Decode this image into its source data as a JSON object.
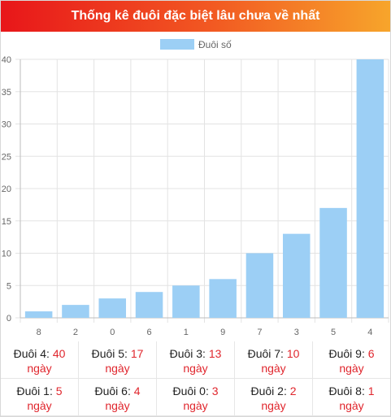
{
  "header": {
    "title": "Thống kê đuôi đặc biệt lâu chưa về nhất"
  },
  "colors": {
    "bar": "#9ccff5",
    "value_red": "#e0262d"
  },
  "chart_data": {
    "type": "bar",
    "title": "",
    "xlabel": "",
    "ylabel": "",
    "legend": {
      "label": "Đuôi số",
      "position": "top"
    },
    "categories": [
      "8",
      "2",
      "0",
      "6",
      "1",
      "9",
      "7",
      "3",
      "5",
      "4"
    ],
    "values": [
      1,
      2,
      3,
      4,
      5,
      6,
      10,
      13,
      17,
      40
    ],
    "ylim": [
      0,
      40
    ],
    "yticks": [
      0,
      5,
      10,
      15,
      20,
      25,
      30,
      35,
      40
    ],
    "grid": true
  },
  "stats": {
    "unit": "ngày",
    "rows": [
      [
        {
          "label": "Đuôi 4:",
          "value": "40"
        },
        {
          "label": "Đuôi 5:",
          "value": "17"
        },
        {
          "label": "Đuôi 3:",
          "value": "13"
        },
        {
          "label": "Đuôi 7:",
          "value": "10"
        },
        {
          "label": "Đuôi 9:",
          "value": "6"
        }
      ],
      [
        {
          "label": "Đuôi 1:",
          "value": "5"
        },
        {
          "label": "Đuôi 6:",
          "value": "4"
        },
        {
          "label": "Đuôi 0:",
          "value": "3"
        },
        {
          "label": "Đuôi 2:",
          "value": "2"
        },
        {
          "label": "Đuôi 8:",
          "value": "1"
        }
      ]
    ]
  }
}
